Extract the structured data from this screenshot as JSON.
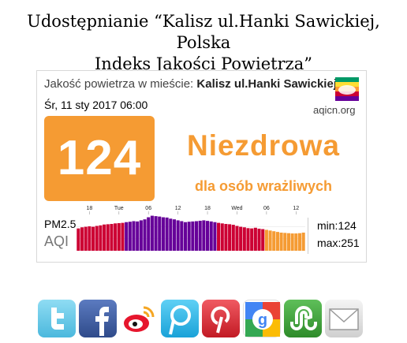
{
  "header": {
    "line1": "Udostępnianie “Kalisz ul.Hanki Sawickiej, Polska",
    "line2": "Indeks Jakości Powietrza”"
  },
  "card": {
    "city_prefix": "Jakość powietrza w mieście:",
    "city_name": "Kalisz ul.Hanki Sawickiej",
    "date": "Śr, 11 sty 2017 06:00",
    "site": "aqicn.org",
    "aqi": "124",
    "level": "Niezdrowa",
    "sublevel": "dla osób wrażliwych",
    "pollutant": "PM2.5",
    "aqi_label": "AQI",
    "min_label": "min:124",
    "max_label": "max:251",
    "colors": {
      "moderate": "#f9c80e",
      "usg": "#f59b33",
      "unhealthy": "#cc0033",
      "very_unhealthy": "#660099"
    }
  },
  "chart_data": {
    "type": "bar",
    "title": "",
    "xlabel": "",
    "ylabel": "",
    "tick_labels": [
      "18",
      "Tue",
      "06",
      "12",
      "18",
      "Wed",
      "06",
      "12"
    ],
    "ylim": [
      0,
      260
    ],
    "values": [
      160,
      168,
      172,
      175,
      172,
      178,
      182,
      188,
      190,
      192,
      196,
      198,
      200,
      205,
      208,
      212,
      210,
      218,
      225,
      240,
      251,
      248,
      245,
      240,
      238,
      230,
      225,
      218,
      212,
      205,
      208,
      210,
      212,
      215,
      218,
      214,
      210,
      205,
      200,
      196,
      192,
      190,
      186,
      178,
      172,
      168,
      162,
      160,
      165,
      158,
      155,
      150,
      145,
      140,
      135,
      130,
      128,
      126,
      124,
      124,
      126,
      130
    ],
    "grid": true
  },
  "social": [
    {
      "name": "twitter-icon",
      "color": "#5cc6e8"
    },
    {
      "name": "facebook-icon",
      "color": "#3b5998"
    },
    {
      "name": "weibo-icon",
      "color": "#ffffff"
    },
    {
      "name": "plurk-icon",
      "color": "#2cb5e9"
    },
    {
      "name": "pinterest-icon",
      "color": "#d9232e"
    },
    {
      "name": "google-icon",
      "color": "#ffffff"
    },
    {
      "name": "stumbleupon-icon",
      "color": "#3d9b3a"
    },
    {
      "name": "email-icon",
      "color": "#dddddd"
    }
  ]
}
